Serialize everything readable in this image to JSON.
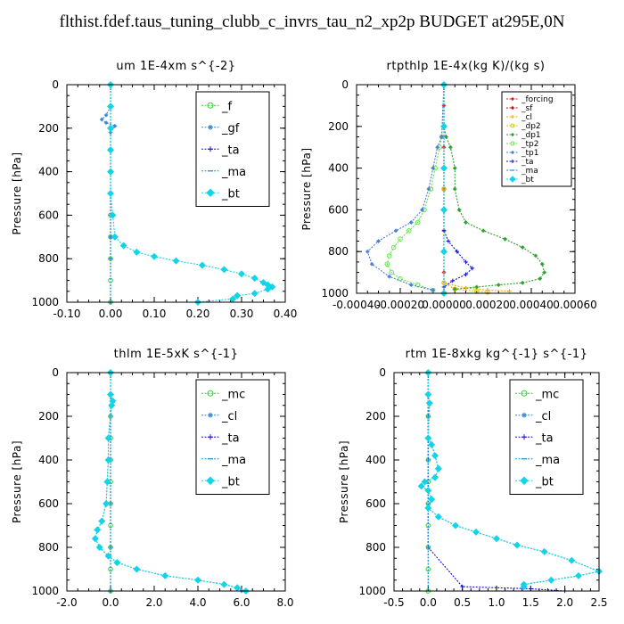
{
  "figure_title": "flthist.fdef.taus_tuning_clubb_c_invrs_tau_n2_xp2p  BUDGET at295E,0N",
  "chart_data": [
    {
      "type": "line",
      "title": "um   1E-4xm s^{-2}",
      "ylabel": "Pressure [hPa]",
      "xlim": [
        -0.1,
        0.4
      ],
      "ylim": [
        1000,
        0
      ],
      "xticks": [
        "-0.10",
        "0.00",
        "0.10",
        "0.20",
        "0.30",
        "0.40"
      ],
      "yticks": [
        "0",
        "200",
        "400",
        "600",
        "800",
        "1000"
      ],
      "legend_position": "top-right",
      "legend_style": "large",
      "series": [
        {
          "name": "_f",
          "color": "#39d13a",
          "marker": "circle",
          "x": [
            0,
            0,
            0,
            0,
            0,
            0,
            0,
            0,
            0,
            0,
            0
          ],
          "y": [
            0,
            100,
            200,
            300,
            400,
            500,
            600,
            700,
            800,
            900,
            1000
          ]
        },
        {
          "name": "_gf",
          "color": "#3a8ad6",
          "marker": "star",
          "x": [
            0,
            0,
            -0.01,
            -0.02,
            -0.01,
            0.01,
            0,
            0,
            0,
            0
          ],
          "y": [
            0,
            100,
            140,
            160,
            175,
            190,
            220,
            300,
            500,
            700
          ]
        },
        {
          "name": "_ta",
          "color": "#1010d0",
          "marker": "plus",
          "x": [
            0,
            0,
            0,
            0,
            0,
            0
          ],
          "y": [
            0,
            200,
            400,
            600,
            800,
            1000
          ]
        },
        {
          "name": "_ma",
          "color": "#1a8fe0",
          "marker": "dash",
          "x": [
            0,
            0,
            0,
            0,
            0,
            0
          ],
          "y": [
            0,
            200,
            400,
            600,
            800,
            1000
          ]
        },
        {
          "name": "_bt",
          "color": "#12d4e8",
          "marker": "diamond",
          "x": [
            0,
            0,
            0,
            0,
            0,
            0,
            0.005,
            0.01,
            0.03,
            0.06,
            0.1,
            0.15,
            0.21,
            0.26,
            0.3,
            0.33,
            0.35,
            0.36,
            0.37,
            0.36,
            0.33,
            0.29,
            0.28,
            0.2
          ],
          "y": [
            0,
            100,
            200,
            300,
            400,
            500,
            600,
            700,
            740,
            770,
            790,
            810,
            830,
            850,
            870,
            890,
            910,
            920,
            930,
            940,
            960,
            970,
            985,
            1000
          ]
        }
      ]
    },
    {
      "type": "line",
      "title": "rtpthlp   1E-4x(kg K)/(kg s)",
      "ylabel": "Pressure [hPa]",
      "xlim": [
        -0.0004,
        0.0006
      ],
      "ylim": [
        1000,
        0
      ],
      "xticks": [
        "-0.00040",
        "-0.00020",
        "0.00000",
        "0.00020",
        "0.00040",
        "0.00060"
      ],
      "yticks": [
        "0",
        "200",
        "400",
        "600",
        "800",
        "1000"
      ],
      "legend_position": "top-right",
      "legend_style": "small",
      "series": [
        {
          "name": "_forcing",
          "color": "#e02020",
          "marker": "star",
          "x": [
            0,
            0,
            0,
            0,
            0,
            0,
            0,
            0,
            0,
            0,
            0
          ],
          "y": [
            0,
            100,
            200,
            300,
            400,
            500,
            600,
            700,
            800,
            900,
            1000
          ]
        },
        {
          "name": "_sf",
          "color": "#c01010",
          "marker": "star",
          "x": [
            0,
            0,
            0,
            0,
            0,
            0
          ],
          "y": [
            0,
            200,
            400,
            600,
            800,
            1000
          ]
        },
        {
          "name": "_cl",
          "color": "#ffa500",
          "marker": "plus",
          "x": [
            0,
            0,
            0,
            0.0001,
            0.0002,
            0.0003
          ],
          "y": [
            0,
            500,
            950,
            975,
            985,
            990
          ]
        },
        {
          "name": "_dp2",
          "color": "#d8c400",
          "marker": "circle",
          "x": [
            0,
            0,
            0,
            5e-05,
            0.00015,
            0.0002
          ],
          "y": [
            0,
            500,
            950,
            980,
            990,
            995
          ]
        },
        {
          "name": "_dp1",
          "color": "#2ca02c",
          "marker": "star",
          "x": [
            0,
            0,
            1e-05,
            3e-05,
            5e-05,
            5e-05,
            7e-05,
            0.0001,
            0.00018,
            0.00028,
            0.00036,
            0.00042,
            0.00045,
            0.00046,
            0.00044,
            0.00036,
            0.00025,
            0.00015,
            5e-05
          ],
          "y": [
            0,
            200,
            250,
            300,
            400,
            500,
            600,
            660,
            700,
            740,
            780,
            820,
            860,
            900,
            930,
            950,
            960,
            970,
            980
          ]
        },
        {
          "name": "_tp2",
          "color": "#66e64d",
          "marker": "circle",
          "x": [
            0,
            -1e-05,
            -2e-05,
            -4e-05,
            -6e-05,
            -9e-05,
            -0.00012,
            -0.00016,
            -0.0002,
            -0.00023,
            -0.00025,
            -0.00026,
            -0.00024,
            -0.0002,
            -0.00012,
            -5e-05
          ],
          "y": [
            0,
            250,
            300,
            400,
            500,
            600,
            660,
            700,
            740,
            780,
            820,
            860,
            900,
            930,
            960,
            985
          ]
        },
        {
          "name": "_tp1",
          "color": "#4a7fd4",
          "marker": "star",
          "x": [
            0,
            -1e-05,
            -3e-05,
            -5e-05,
            -7e-05,
            -0.0001,
            -0.00015,
            -0.00022,
            -0.0003,
            -0.00035,
            -0.00033,
            -0.00025,
            -0.00015,
            -5e-05
          ],
          "y": [
            0,
            250,
            300,
            400,
            500,
            600,
            660,
            700,
            750,
            800,
            860,
            920,
            960,
            985
          ]
        },
        {
          "name": "_ta",
          "color": "#1010d0",
          "marker": "plus",
          "x": [
            0,
            0,
            0,
            2e-05,
            6e-05,
            0.0001,
            0.00013,
            0.0001,
            4e-05,
            0
          ],
          "y": [
            0,
            600,
            700,
            750,
            800,
            850,
            880,
            910,
            940,
            970
          ]
        },
        {
          "name": "_ma",
          "color": "#1a8fe0",
          "marker": "dash",
          "x": [
            0,
            0,
            0,
            0,
            0,
            0
          ],
          "y": [
            0,
            200,
            400,
            600,
            800,
            1000
          ]
        },
        {
          "name": "_bt",
          "color": "#12d4e8",
          "marker": "diamond",
          "x": [
            0,
            0,
            0,
            0,
            0,
            0
          ],
          "y": [
            0,
            200,
            400,
            600,
            800,
            1000
          ]
        }
      ]
    },
    {
      "type": "line",
      "title": "thlm   1E-5xK s^{-1}",
      "ylabel": "Pressure [hPa]",
      "xlim": [
        -2,
        8
      ],
      "ylim": [
        1000,
        0
      ],
      "xticks": [
        "-2.0",
        "0.0",
        "2.0",
        "4.0",
        "6.0",
        "8.0"
      ],
      "yticks": [
        "0",
        "200",
        "400",
        "600",
        "800",
        "1000"
      ],
      "legend_position": "top-right",
      "legend_style": "large",
      "series": [
        {
          "name": "_mc",
          "color": "#39d13a",
          "marker": "circle",
          "x": [
            0,
            0,
            0,
            0,
            0,
            0,
            0,
            0,
            0,
            0,
            0
          ],
          "y": [
            0,
            100,
            200,
            300,
            400,
            500,
            600,
            700,
            800,
            900,
            1000
          ]
        },
        {
          "name": "_cl",
          "color": "#3a8ad6",
          "marker": "star",
          "x": [
            0,
            0,
            0.1,
            0.05,
            -0.1,
            -0.1,
            -0.15,
            -0.2,
            -0.4,
            -0.6,
            -0.7,
            -0.5,
            -0.1,
            0.3,
            1.2,
            2.5,
            4.0,
            5.2,
            5.8,
            6.0
          ],
          "y": [
            0,
            100,
            130,
            150,
            300,
            400,
            500,
            600,
            680,
            720,
            760,
            800,
            840,
            870,
            900,
            930,
            950,
            970,
            985,
            1000
          ]
        },
        {
          "name": "_ta",
          "color": "#1010d0",
          "marker": "plus",
          "x": [
            0,
            0,
            0,
            0,
            0,
            0
          ],
          "y": [
            0,
            200,
            400,
            600,
            800,
            1000
          ]
        },
        {
          "name": "_ma",
          "color": "#1a8fe0",
          "marker": "dash",
          "x": [
            0,
            0,
            0,
            0,
            0,
            0
          ],
          "y": [
            0,
            200,
            400,
            600,
            800,
            1000
          ]
        },
        {
          "name": "_bt",
          "color": "#12d4e8",
          "marker": "diamond",
          "x": [
            0,
            0,
            0.1,
            0.05,
            -0.1,
            -0.1,
            -0.15,
            -0.2,
            -0.4,
            -0.6,
            -0.7,
            -0.5,
            -0.1,
            0.3,
            1.2,
            2.5,
            4.0,
            5.2,
            5.8,
            6.2
          ],
          "y": [
            0,
            100,
            130,
            150,
            300,
            400,
            500,
            600,
            680,
            720,
            760,
            800,
            840,
            870,
            900,
            930,
            950,
            970,
            985,
            1000
          ]
        }
      ]
    },
    {
      "type": "line",
      "title": "rtm   1E-8xkg kg^{-1} s^{-1}",
      "ylabel": "Pressure [hPa]",
      "xlim": [
        -0.5,
        2.5
      ],
      "ylim": [
        1000,
        0
      ],
      "xticks": [
        "-0.5",
        "0.0",
        "0.5",
        "1.0",
        "1.5",
        "2.0",
        "2.5"
      ],
      "yticks": [
        "0",
        "200",
        "400",
        "600",
        "800",
        "1000"
      ],
      "legend_position": "top-right",
      "legend_style": "large",
      "series": [
        {
          "name": "_mc",
          "color": "#39d13a",
          "marker": "circle",
          "x": [
            0,
            0,
            0,
            0,
            0,
            0,
            0,
            0,
            0,
            0,
            0
          ],
          "y": [
            0,
            100,
            200,
            300,
            400,
            500,
            600,
            700,
            800,
            900,
            1000
          ]
        },
        {
          "name": "_cl",
          "color": "#3a8ad6",
          "marker": "star",
          "x": [
            0,
            0,
            0.02,
            0,
            0.05,
            0.1,
            0.15,
            0.1,
            -0.05,
            -0.1,
            0,
            0.05,
            0,
            0.15,
            0.4,
            0.7,
            1.0,
            1.3,
            1.7,
            2.1,
            2.5,
            2.2,
            1.8,
            1.4,
            1.4
          ],
          "y": [
            0,
            100,
            140,
            300,
            330,
            380,
            440,
            480,
            500,
            520,
            540,
            580,
            620,
            660,
            700,
            730,
            760,
            790,
            820,
            860,
            910,
            930,
            950,
            970,
            980
          ]
        },
        {
          "name": "_ta",
          "color": "#1010d0",
          "marker": "plus",
          "x": [
            0,
            0,
            0,
            0,
            0.5,
            1.5,
            2.0
          ],
          "y": [
            0,
            200,
            400,
            800,
            980,
            990,
            1000
          ]
        },
        {
          "name": "_ma",
          "color": "#1a8fe0",
          "marker": "dash",
          "x": [
            0,
            0,
            0,
            0,
            0,
            0
          ],
          "y": [
            0,
            200,
            400,
            600,
            800,
            1000
          ]
        },
        {
          "name": "_bt",
          "color": "#12d4e8",
          "marker": "diamond",
          "x": [
            0,
            0,
            0.02,
            0,
            0.05,
            0.1,
            0.15,
            0.1,
            -0.05,
            -0.1,
            0,
            0.05,
            0,
            0.15,
            0.4,
            0.7,
            1.0,
            1.3,
            1.7,
            2.1,
            2.5,
            2.2,
            1.8,
            1.4,
            1.4
          ],
          "y": [
            0,
            100,
            140,
            300,
            330,
            380,
            440,
            480,
            500,
            520,
            540,
            580,
            620,
            660,
            700,
            730,
            760,
            790,
            820,
            860,
            910,
            930,
            950,
            970,
            980
          ]
        }
      ]
    }
  ]
}
